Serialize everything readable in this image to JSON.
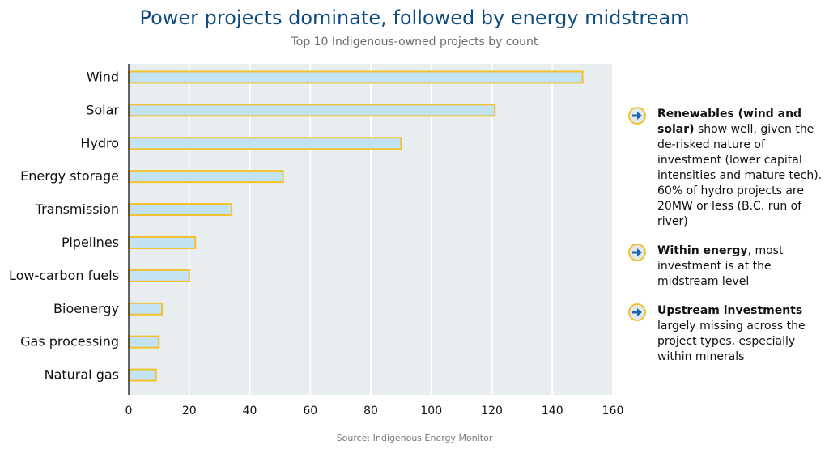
{
  "title": "Power projects dominate, followed by energy midstream",
  "subtitle": "Top 10 Indigenous-owned projects by count",
  "source": "Source: Indigenous Energy Monitor",
  "colors": {
    "title": "#0f4c81",
    "plot_background": "#e8edf0",
    "bar_fill": "#c3e2f2",
    "bar_stroke": "#f2c12e",
    "icon_ring": "#f2c12e",
    "icon_arrow": "#1e64a8"
  },
  "notes": [
    {
      "icon": "arrow-right-circle-icon",
      "bold": "Renewables (wind and solar)",
      "text": " show well, given the de-risked nature of investment (lower capital intensities and mature tech). 60% of hydro projects are 20MW or less (B.C. run of river)"
    },
    {
      "icon": "arrow-right-circle-icon",
      "bold": "Within energy",
      "text": ", most investment is at the midstream level"
    },
    {
      "icon": "arrow-right-circle-icon",
      "bold": "Upstream investments",
      "text": " largely missing across the project types, especially within minerals"
    }
  ],
  "chart_data": {
    "type": "bar",
    "orientation": "horizontal",
    "title": "Power projects dominate, followed by energy midstream",
    "subtitle": "Top 10 Indigenous-owned projects by count",
    "categories": [
      "Wind",
      "Solar",
      "Hydro",
      "Energy storage",
      "Transmission",
      "Pipelines",
      "Low-carbon fuels",
      "Bioenergy",
      "Gas processing",
      "Natural gas"
    ],
    "values": [
      150,
      121,
      90,
      51,
      34,
      22,
      20,
      11,
      10,
      9
    ],
    "xlabel": "",
    "ylabel": "",
    "xlim": [
      0,
      160
    ],
    "xticks": [
      0,
      20,
      40,
      60,
      80,
      100,
      120,
      140,
      160
    ],
    "grid": true,
    "legend": "none"
  }
}
